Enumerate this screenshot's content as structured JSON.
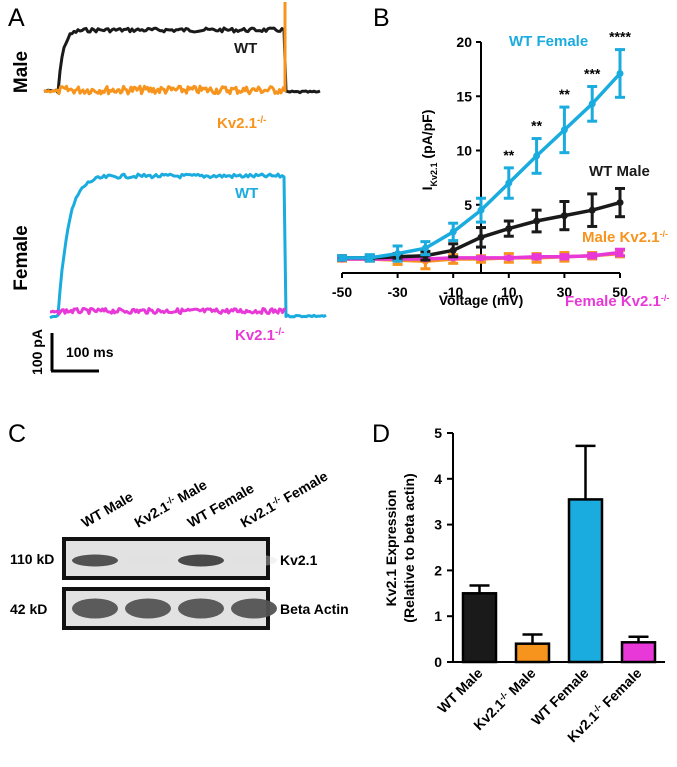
{
  "colors": {
    "wt_male": "#1a1a1a",
    "wt_female": "#1aabdf",
    "ko_male": "#f7941d",
    "ko_female": "#e838d8",
    "black": "#000000"
  },
  "panel_labels": [
    "A",
    "B",
    "C",
    "D"
  ],
  "panel_a": {
    "male_row_label": "Male",
    "female_row_label": "Female",
    "male_wt_label": "WT",
    "male_ko_label": "Kv2.1",
    "male_ko_sup": "-/-",
    "female_wt_label": "WT",
    "female_ko_label": "Kv2.1",
    "female_ko_sup": "-/-",
    "scale_current": "100 pA",
    "scale_time": "100 ms"
  },
  "panel_c": {
    "lanes": [
      {
        "text": "WT Male",
        "sup": ""
      },
      {
        "text": "Kv2.1",
        "sup": "-/-",
        "after": " Male"
      },
      {
        "text": "WT Female",
        "sup": ""
      },
      {
        "text": "Kv2.1",
        "sup": "-/-",
        "after": " Female"
      }
    ],
    "mw_labels": [
      "110 kD",
      "42 kD"
    ],
    "band_labels": [
      "Kv2.1",
      "Beta Actin"
    ],
    "kv21_band_intensity": [
      0.85,
      0.05,
      0.9,
      0.05
    ],
    "actin_band_intensity": [
      0.8,
      0.8,
      0.8,
      0.8
    ]
  },
  "chart_data": [
    {
      "panel": "B",
      "type": "line",
      "title": "",
      "xlabel": "Voltage (mV)",
      "ylabel_main": "I",
      "ylabel_sub": "Kv2.1",
      "ylabel_unit": " (pA/pF)",
      "xlim": [
        -50,
        50
      ],
      "ylim": [
        0,
        20
      ],
      "xticks": [
        -50,
        -30,
        -10,
        10,
        30,
        50
      ],
      "yticks": [
        5,
        10,
        15,
        20
      ],
      "x": [
        -50,
        -40,
        -30,
        -20,
        -10,
        0,
        10,
        20,
        30,
        40,
        50
      ],
      "series": [
        {
          "name": "WT Female",
          "sup": "",
          "color_key": "wt_female",
          "values": [
            0.1,
            0.1,
            0.5,
            1.0,
            2.5,
            4.5,
            7.0,
            9.5,
            11.9,
            14.3,
            17.1
          ],
          "errors": [
            0.2,
            0.3,
            0.7,
            0.6,
            0.8,
            1.1,
            1.4,
            1.6,
            2.1,
            1.6,
            2.2
          ]
        },
        {
          "name": "WT Male",
          "sup": "",
          "color_key": "wt_male",
          "values": [
            0.1,
            0.1,
            0.2,
            0.3,
            0.8,
            2.0,
            2.8,
            3.5,
            4.0,
            4.5,
            5.2
          ],
          "errors": [
            0.2,
            0.2,
            0.3,
            0.4,
            0.6,
            0.9,
            0.7,
            1.0,
            1.3,
            1.5,
            1.3
          ]
        },
        {
          "name": "Male Kv2.1",
          "sup": "-/-",
          "color_key": "ko_male",
          "values": [
            0.0,
            0.0,
            -0.1,
            -0.2,
            0.0,
            0.0,
            0.1,
            0.1,
            0.2,
            0.3,
            0.5
          ],
          "errors": [
            0.2,
            0.2,
            0.4,
            0.7,
            0.4,
            0.3,
            0.4,
            0.4,
            0.4,
            0.3,
            0.3
          ]
        },
        {
          "name": "Female Kv2.1",
          "sup": "-/-",
          "color_key": "ko_female",
          "values": [
            0.0,
            0.0,
            0.0,
            0.0,
            0.1,
            0.1,
            0.1,
            0.2,
            0.2,
            0.3,
            0.6
          ],
          "errors": [
            0.1,
            0.1,
            0.1,
            0.1,
            0.1,
            0.1,
            0.1,
            0.2,
            0.2,
            0.2,
            0.3
          ]
        }
      ],
      "annotations": [
        {
          "x": 10,
          "text": "**"
        },
        {
          "x": 20,
          "text": "**"
        },
        {
          "x": 30,
          "text": "**"
        },
        {
          "x": 40,
          "text": "***"
        },
        {
          "x": 50,
          "text": "****"
        }
      ]
    },
    {
      "panel": "D",
      "type": "bar",
      "title": "",
      "ylabel_line1": "Kv2.1 Expression",
      "ylabel_line2": "(Relative to beta actin)",
      "ylim": [
        0,
        5
      ],
      "yticks": [
        0,
        1,
        2,
        3,
        4,
        5
      ],
      "categories": [
        {
          "text": "WT Male",
          "sup": ""
        },
        {
          "text": "Kv2.1",
          "sup": "-/-",
          "after": " Male"
        },
        {
          "text": "WT Female",
          "sup": ""
        },
        {
          "text": "Kv2.1",
          "sup": "-/-",
          "after": " Female"
        }
      ],
      "values": [
        1.5,
        0.4,
        3.55,
        0.43
      ],
      "errors": [
        0.17,
        0.2,
        1.17,
        0.12
      ],
      "color_keys": [
        "wt_male",
        "ko_male",
        "wt_female",
        "ko_female"
      ]
    }
  ]
}
